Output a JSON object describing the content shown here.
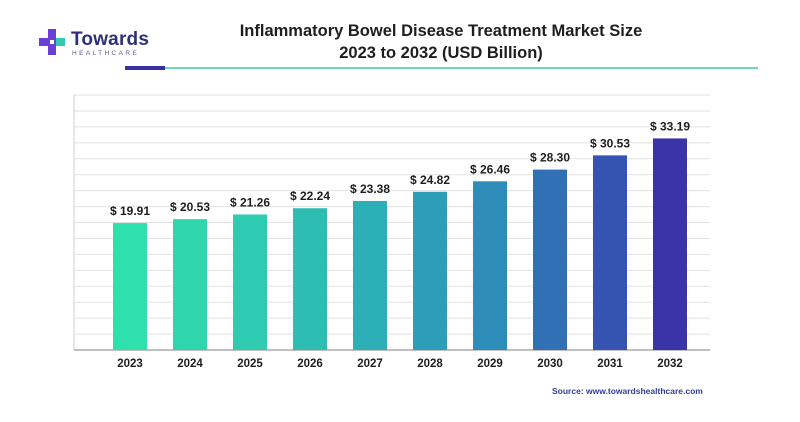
{
  "brand": {
    "name": "Towards",
    "subtitle": "HEALTHCARE",
    "icon": "medical-cross-icon",
    "colors": {
      "mark_purple": "#6b3fd4",
      "mark_teal": "#34c9b0"
    }
  },
  "chart_data": {
    "type": "bar",
    "title": "Inflammatory Bowel Disease Treatment Market Size",
    "subtitle": "2023 to 2032 (USD Billion)",
    "categories": [
      "2023",
      "2024",
      "2025",
      "2026",
      "2027",
      "2028",
      "2029",
      "2030",
      "2031",
      "2032"
    ],
    "values": [
      19.91,
      20.53,
      21.26,
      22.24,
      23.38,
      24.82,
      26.46,
      28.3,
      30.53,
      33.19
    ],
    "data_labels": [
      "$ 19.91",
      "$ 20.53",
      "$ 21.26",
      "$ 22.24",
      "$ 23.38",
      "$ 24.82",
      "$ 26.46",
      "$ 28.30",
      "$ 30.53",
      "$ 33.19"
    ],
    "xlabel": "",
    "ylabel": "",
    "ylim": [
      0,
      40
    ],
    "grid": true,
    "legend": "none",
    "bar_colors": [
      "#2ee0ab",
      "#2fd6ad",
      "#2fcbb0",
      "#2ebdb3",
      "#2cafb7",
      "#2d9eb8",
      "#2e8cb8",
      "#3170b5",
      "#3553b0",
      "#3b33a8"
    ]
  },
  "source": "Source: www.towardshealthcare.com"
}
